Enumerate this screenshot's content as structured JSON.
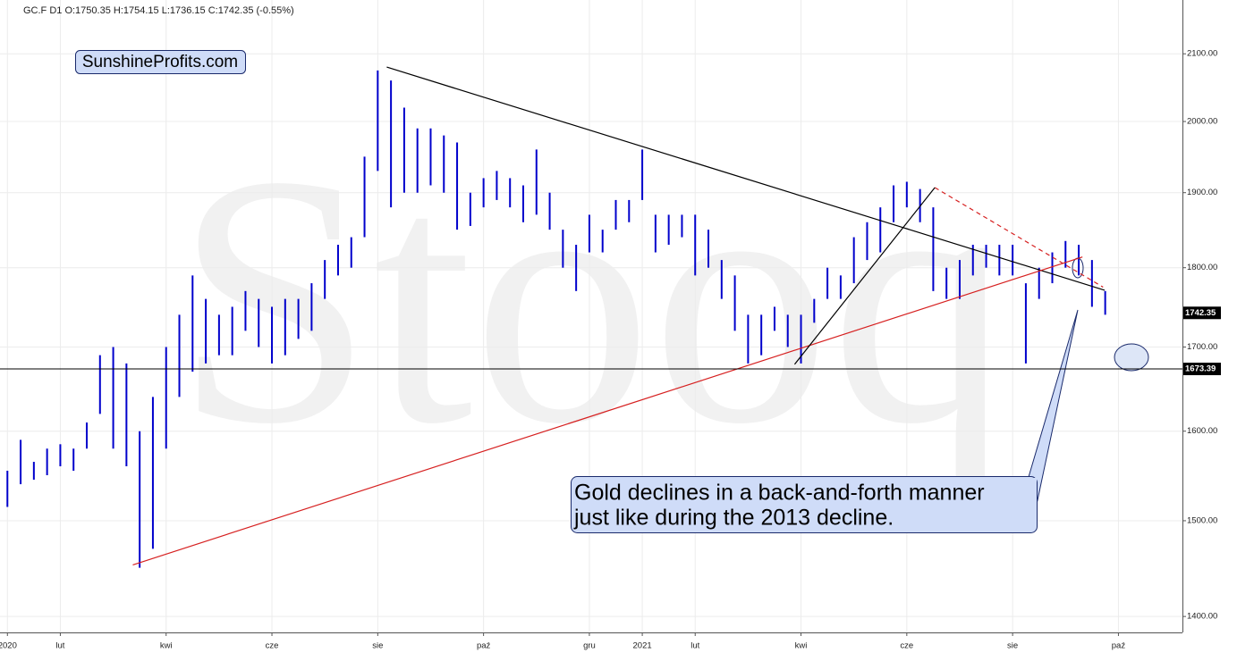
{
  "chart_data": {
    "type": "range",
    "title": "GC.F  D1  O:1750.35  H:1754.15  L:1736.15  C:1742.35  (-0.55%)",
    "watermark": "Stooq",
    "badge": "SunshineProfits.com",
    "annotation": [
      "Gold declines in a back-and-forth manner",
      "just like during the 2013 decline."
    ],
    "log_scale": true,
    "grid": true,
    "xlim": [
      -0.14,
      22.21
    ],
    "ylim": [
      1384,
      2183
    ],
    "xticks": [
      {
        "value": 0,
        "label": "2020"
      },
      {
        "value": 1,
        "label": "lut"
      },
      {
        "value": 3,
        "label": "kwi"
      },
      {
        "value": 5,
        "label": "cze"
      },
      {
        "value": 7,
        "label": "sie"
      },
      {
        "value": 9,
        "label": "paź"
      },
      {
        "value": 11,
        "label": "gru"
      },
      {
        "value": 12,
        "label": "2021"
      },
      {
        "value": 13,
        "label": "lut"
      },
      {
        "value": 15,
        "label": "kwi"
      },
      {
        "value": 17,
        "label": "cze"
      },
      {
        "value": 19,
        "label": "sie"
      },
      {
        "value": 21,
        "label": "paź"
      }
    ],
    "yticks": [
      {
        "value": 1400,
        "label": "1400.00"
      },
      {
        "value": 1500,
        "label": "1500.00"
      },
      {
        "value": 1600,
        "label": "1600.00"
      },
      {
        "value": 1700,
        "label": "1700.00"
      },
      {
        "value": 1800,
        "label": "1800.00"
      },
      {
        "value": 1900,
        "label": "1900.00"
      },
      {
        "value": 2000,
        "label": "2000.00"
      },
      {
        "value": 2100,
        "label": "2100.00"
      }
    ],
    "x": [
      0,
      0.25,
      0.5,
      0.75,
      1,
      1.25,
      1.5,
      1.75,
      2,
      2.25,
      2.5,
      2.75,
      3,
      3.25,
      3.5,
      3.75,
      4,
      4.25,
      4.5,
      4.75,
      5,
      5.25,
      5.5,
      5.75,
      6,
      6.25,
      6.5,
      6.75,
      7,
      7.25,
      7.5,
      7.75,
      8,
      8.25,
      8.5,
      8.75,
      9,
      9.25,
      9.5,
      9.75,
      10,
      10.25,
      10.5,
      10.75,
      11,
      11.25,
      11.5,
      11.75,
      12,
      12.25,
      12.5,
      12.75,
      13,
      13.25,
      13.5,
      13.75,
      14,
      14.25,
      14.5,
      14.75,
      15,
      15.25,
      15.5,
      15.75,
      16,
      16.25,
      16.5,
      16.75,
      17,
      17.25,
      17.5,
      17.75,
      18,
      18.25,
      18.5,
      18.75,
      19,
      19.25,
      19.5,
      19.75,
      20,
      20.25,
      20.5,
      20.75
    ],
    "series": [
      {
        "color": "#0000cc",
        "high": [
          1555,
          1590,
          1565,
          1580,
          1585,
          1580,
          1610,
          1690,
          1700,
          1680,
          1600,
          1640,
          1700,
          1740,
          1790,
          1760,
          1740,
          1750,
          1770,
          1760,
          1750,
          1760,
          1760,
          1780,
          1810,
          1830,
          1840,
          1950,
          2075,
          2060,
          2020,
          1990,
          1990,
          1980,
          1970,
          1900,
          1920,
          1930,
          1920,
          1910,
          1960,
          1900,
          1850,
          1830,
          1870,
          1850,
          1890,
          1890,
          1960,
          1870,
          1870,
          1870,
          1870,
          1850,
          1810,
          1790,
          1740,
          1740,
          1750,
          1740,
          1740,
          1760,
          1800,
          1790,
          1840,
          1860,
          1880,
          1910,
          1915,
          1905,
          1880,
          1800,
          1810,
          1830,
          1830,
          1830,
          1830,
          1780,
          1800,
          1820,
          1835,
          1830,
          1810,
          1770
        ],
        "low": [
          1515,
          1540,
          1545,
          1550,
          1560,
          1555,
          1580,
          1620,
          1580,
          1560,
          1450,
          1470,
          1580,
          1640,
          1670,
          1680,
          1690,
          1690,
          1720,
          1700,
          1680,
          1690,
          1710,
          1720,
          1760,
          1790,
          1800,
          1840,
          1930,
          1880,
          1900,
          1900,
          1910,
          1900,
          1850,
          1855,
          1880,
          1890,
          1880,
          1860,
          1870,
          1850,
          1800,
          1770,
          1820,
          1820,
          1850,
          1860,
          1890,
          1820,
          1830,
          1840,
          1790,
          1800,
          1760,
          1720,
          1680,
          1690,
          1720,
          1700,
          1680,
          1730,
          1760,
          1760,
          1780,
          1810,
          1820,
          1860,
          1880,
          1860,
          1770,
          1760,
          1760,
          1790,
          1800,
          1790,
          1790,
          1680,
          1760,
          1780,
          1800,
          1790,
          1750,
          1740
        ]
      }
    ],
    "trendlines": [
      {
        "x": [
          7.17,
          20.74
        ],
        "y": [
          2080,
          1771
        ],
        "color": "#000000"
      },
      {
        "x": [
          2.37,
          20.32
        ],
        "y": [
          1453,
          1814
        ],
        "color": "#d62020"
      },
      {
        "x": [
          17.53,
          20.71
        ],
        "y": [
          1907,
          1775
        ],
        "color": "#d62020",
        "dashed": true
      },
      {
        "x": [
          14.88,
          17.53
        ],
        "y": [
          1679,
          1907
        ],
        "color": "#000000"
      }
    ],
    "support_level": 1673.39,
    "last_price": 1742.35
  }
}
